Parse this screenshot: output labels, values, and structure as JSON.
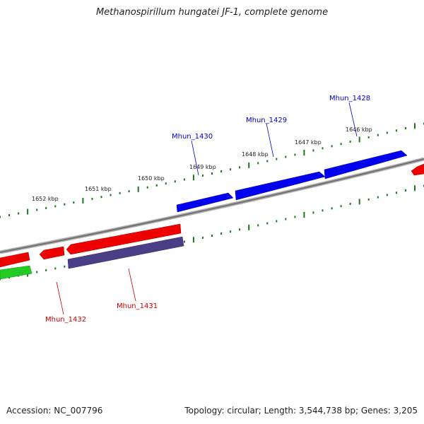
{
  "title": "Methanospirillum hungatei JF-1, complete genome",
  "footer": {
    "accession": "Accession: NC_007796",
    "summary": "Topology: circular; Length: 3,544,738 bp; Genes: 3,205"
  },
  "colors": {
    "backbone": "#808080",
    "forward_gene": "#0000ee",
    "reverse_gene": "#ee0000",
    "rna_gene": "#22cc22",
    "pseudo_gene": "#4a3f86",
    "tick": "#1a7a1a",
    "label_forward": "#0000cc",
    "label_reverse": "#cc0000"
  },
  "kbp_ticks": [
    "1652 kbp",
    "1651 kbp",
    "1650 kbp",
    "1649 kbp",
    "1648 kbp",
    "1647 kbp",
    "1646 kbp"
  ],
  "gene_labels": {
    "forward": [
      "Mhun_1430",
      "Mhun_1429",
      "Mhun_1428"
    ],
    "reverse": [
      "Mhun_1432",
      "Mhun_1431"
    ]
  }
}
